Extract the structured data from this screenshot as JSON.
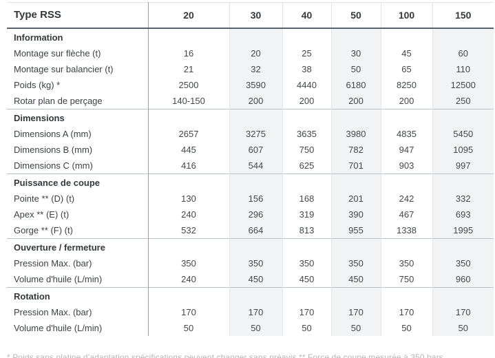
{
  "table": {
    "corner_label": "Type RSS",
    "columns": [
      "20",
      "30",
      "40",
      "50",
      "100",
      "150"
    ],
    "sections": [
      {
        "title": "Information",
        "rows": [
          {
            "label": "Montage sur flèche (t)",
            "values": [
              "16",
              "20",
              "25",
              "30",
              "45",
              "60"
            ]
          },
          {
            "label": "Montage sur balancier (t)",
            "values": [
              "21",
              "32",
              "38",
              "50",
              "65",
              "110"
            ]
          },
          {
            "label": "Poids (kg) *",
            "values": [
              "2500",
              "3590",
              "4440",
              "6180",
              "8250",
              "12500"
            ]
          },
          {
            "label": "Rotar plan de perçage",
            "values": [
              "140-150",
              "200",
              "200",
              "200",
              "200",
              "250"
            ]
          }
        ]
      },
      {
        "title": "Dimensions",
        "rows": [
          {
            "label": "Dimensions A (mm)",
            "values": [
              "2657",
              "3275",
              "3635",
              "3980",
              "4835",
              "5450"
            ]
          },
          {
            "label": "Dimensions B (mm)",
            "values": [
              "445",
              "607",
              "750",
              "782",
              "947",
              "1095"
            ]
          },
          {
            "label": "Dimensions C (mm)",
            "values": [
              "416",
              "544",
              "625",
              "701",
              "903",
              "997"
            ]
          }
        ]
      },
      {
        "title": "Puissance de coupe",
        "rows": [
          {
            "label": "Pointe ** (D) (t)",
            "values": [
              "130",
              "156",
              "168",
              "201",
              "242",
              "332"
            ]
          },
          {
            "label": "Apex ** (E) (t)",
            "values": [
              "240",
              "296",
              "319",
              "390",
              "467",
              "693"
            ]
          },
          {
            "label": "Gorge ** (F) (t)",
            "values": [
              "532",
              "664",
              "813",
              "955",
              "1338",
              "1995"
            ]
          }
        ]
      },
      {
        "title": "Ouverture / fermeture",
        "rows": [
          {
            "label": "Pression Max. (bar)",
            "values": [
              "350",
              "350",
              "350",
              "350",
              "350",
              "350"
            ]
          },
          {
            "label": "Volume d'huile (L/min)",
            "values": [
              "240",
              "450",
              "450",
              "450",
              "750",
              "960"
            ]
          }
        ]
      },
      {
        "title": "Rotation",
        "rows": [
          {
            "label": "Pression Max. (bar)",
            "values": [
              "170",
              "170",
              "170",
              "170",
              "170",
              "170"
            ]
          },
          {
            "label": "Volume d'huile (L/min)",
            "values": [
              "50",
              "50",
              "50",
              "50",
              "50",
              "50"
            ]
          }
        ]
      }
    ]
  },
  "footer": {
    "note": "* Poids sans platine d’adaptation spécifications peuvent changer sans préavis ** Force de coupe mesurée à 350 bars"
  },
  "colors": {
    "header_border": "#55626d",
    "section_border": "#b8c1c8",
    "first_column_divider": "#95a1aa",
    "column_divider": "#e2e5e7",
    "column_stripe": "#f2f3f5",
    "text_dark": "#33383c",
    "footnote_text": "#b6b6b6"
  }
}
